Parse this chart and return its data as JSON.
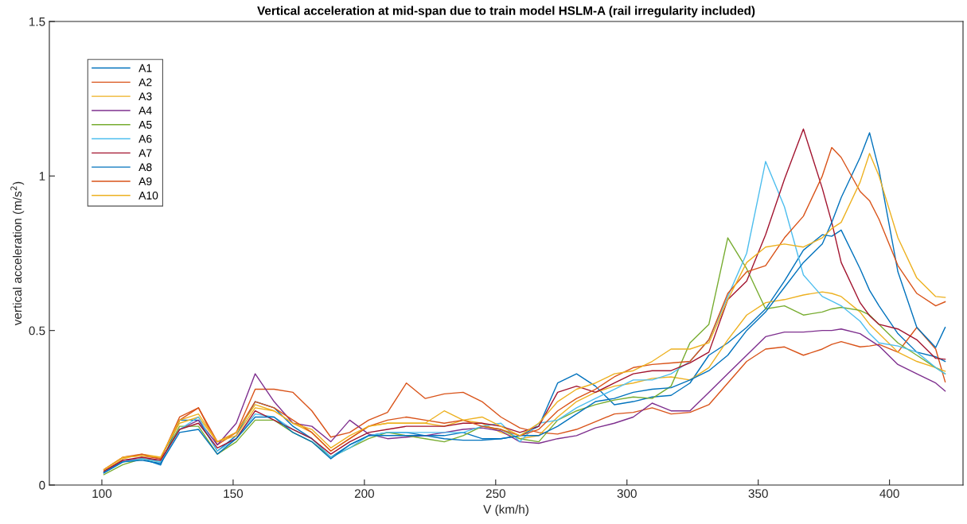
{
  "chart_data": {
    "type": "line",
    "title": "Vertical acceleration at mid-span due to train model HSLM-A (rail irregularity included)",
    "xlabel": "V (km/h)",
    "ylabel": "vertical acceleration (m/s$^{2}$)",
    "x": [
      100.8,
      108,
      115.2,
      122.4,
      129.6,
      136.8,
      144,
      151.2,
      158.4,
      165.6,
      172.8,
      180,
      187.2,
      194.4,
      201.6,
      208.8,
      216,
      223.2,
      230.4,
      237.6,
      244.8,
      252,
      259.2,
      266.4,
      273.6,
      280.8,
      288,
      295.2,
      302.4,
      309.6,
      316.8,
      324,
      331.2,
      338.4,
      345.6,
      352.8,
      360,
      367.2,
      374.4,
      378,
      381.6,
      388.8,
      392.4,
      396,
      403.2,
      410.4,
      417.6,
      421.2
    ],
    "xlim": [
      80,
      428
    ],
    "xticks": [
      100,
      150,
      200,
      250,
      300,
      350,
      400
    ],
    "ylim": [
      0,
      1.5
    ],
    "yticks": [
      0,
      0.5,
      1,
      1.5
    ],
    "legend": "top left",
    "grid": false,
    "line_style": "solid",
    "series": [
      {
        "name": "A1",
        "color": "#0072bd",
        "values": [
          0.04,
          0.075,
          0.085,
          0.065,
          0.21,
          0.21,
          0.11,
          0.16,
          0.27,
          0.25,
          0.19,
          0.15,
          0.09,
          0.13,
          0.16,
          0.17,
          0.17,
          0.16,
          0.16,
          0.17,
          0.15,
          0.15,
          0.16,
          0.19,
          0.33,
          0.36,
          0.32,
          0.26,
          0.27,
          0.285,
          0.29,
          0.33,
          0.42,
          0.46,
          0.51,
          0.57,
          0.66,
          0.76,
          0.81,
          0.805,
          0.825,
          0.7,
          0.63,
          0.58,
          0.49,
          0.43,
          0.415,
          0.4
        ]
      },
      {
        "name": "A2",
        "color": "#d95319",
        "values": [
          0.05,
          0.09,
          0.095,
          0.085,
          0.21,
          0.25,
          0.13,
          0.17,
          0.31,
          0.31,
          0.3,
          0.24,
          0.155,
          0.17,
          0.21,
          0.235,
          0.33,
          0.28,
          0.295,
          0.3,
          0.27,
          0.22,
          0.185,
          0.17,
          0.165,
          0.18,
          0.205,
          0.23,
          0.235,
          0.25,
          0.23,
          0.235,
          0.26,
          0.33,
          0.4,
          0.44,
          0.447,
          0.42,
          0.44,
          0.455,
          0.464,
          0.447,
          0.45,
          0.455,
          0.43,
          0.51,
          0.44,
          0.334
        ]
      },
      {
        "name": "A3",
        "color": "#edb120",
        "values": [
          0.045,
          0.085,
          0.1,
          0.09,
          0.2,
          0.22,
          0.14,
          0.16,
          0.25,
          0.24,
          0.2,
          0.17,
          0.11,
          0.15,
          0.19,
          0.2,
          0.2,
          0.2,
          0.19,
          0.21,
          0.2,
          0.17,
          0.15,
          0.16,
          0.22,
          0.27,
          0.3,
          0.32,
          0.33,
          0.345,
          0.35,
          0.34,
          0.38,
          0.47,
          0.55,
          0.59,
          0.6,
          0.615,
          0.625,
          0.62,
          0.61,
          0.56,
          0.52,
          0.49,
          0.43,
          0.4,
          0.38,
          0.368
        ]
      },
      {
        "name": "A4",
        "color": "#7e2f8e",
        "values": [
          0.04,
          0.08,
          0.085,
          0.08,
          0.18,
          0.21,
          0.13,
          0.2,
          0.36,
          0.27,
          0.2,
          0.19,
          0.14,
          0.21,
          0.165,
          0.15,
          0.155,
          0.16,
          0.17,
          0.18,
          0.185,
          0.175,
          0.14,
          0.135,
          0.15,
          0.16,
          0.185,
          0.2,
          0.22,
          0.265,
          0.24,
          0.24,
          0.3,
          0.36,
          0.42,
          0.48,
          0.495,
          0.495,
          0.5,
          0.5,
          0.505,
          0.49,
          0.47,
          0.45,
          0.39,
          0.36,
          0.33,
          0.304
        ]
      },
      {
        "name": "A5",
        "color": "#77ac30",
        "values": [
          0.034,
          0.066,
          0.085,
          0.075,
          0.19,
          0.19,
          0.1,
          0.14,
          0.21,
          0.21,
          0.17,
          0.14,
          0.09,
          0.12,
          0.15,
          0.17,
          0.16,
          0.15,
          0.14,
          0.16,
          0.19,
          0.18,
          0.15,
          0.14,
          0.21,
          0.24,
          0.26,
          0.275,
          0.285,
          0.28,
          0.32,
          0.46,
          0.52,
          0.8,
          0.7,
          0.57,
          0.58,
          0.55,
          0.56,
          0.57,
          0.575,
          0.565,
          0.55,
          0.52,
          0.46,
          0.42,
          0.38,
          0.36
        ]
      },
      {
        "name": "A6",
        "color": "#4dbeee",
        "values": [
          0.04,
          0.075,
          0.085,
          0.075,
          0.18,
          0.22,
          0.11,
          0.15,
          0.23,
          0.22,
          0.18,
          0.15,
          0.09,
          0.12,
          0.16,
          0.17,
          0.17,
          0.17,
          0.17,
          0.17,
          0.19,
          0.2,
          0.14,
          0.2,
          0.21,
          0.25,
          0.28,
          0.31,
          0.34,
          0.34,
          0.36,
          0.4,
          0.47,
          0.61,
          0.75,
          1.047,
          0.9,
          0.68,
          0.61,
          0.595,
          0.58,
          0.53,
          0.49,
          0.46,
          0.45,
          0.43,
          0.38,
          0.36
        ]
      },
      {
        "name": "A7",
        "color": "#a2142f",
        "values": [
          0.045,
          0.08,
          0.09,
          0.08,
          0.18,
          0.2,
          0.12,
          0.15,
          0.24,
          0.21,
          0.18,
          0.15,
          0.1,
          0.14,
          0.17,
          0.18,
          0.19,
          0.19,
          0.19,
          0.2,
          0.2,
          0.19,
          0.17,
          0.19,
          0.3,
          0.32,
          0.3,
          0.33,
          0.36,
          0.37,
          0.37,
          0.395,
          0.43,
          0.6,
          0.66,
          0.81,
          0.99,
          1.152,
          0.96,
          0.85,
          0.72,
          0.59,
          0.548,
          0.52,
          0.505,
          0.47,
          0.41,
          0.407
        ]
      },
      {
        "name": "A8",
        "color": "#0072bd",
        "values": [
          0.04,
          0.075,
          0.08,
          0.07,
          0.17,
          0.18,
          0.1,
          0.15,
          0.22,
          0.22,
          0.17,
          0.14,
          0.085,
          0.13,
          0.16,
          0.16,
          0.16,
          0.16,
          0.15,
          0.145,
          0.145,
          0.15,
          0.16,
          0.16,
          0.19,
          0.23,
          0.27,
          0.28,
          0.3,
          0.31,
          0.315,
          0.34,
          0.37,
          0.42,
          0.5,
          0.56,
          0.64,
          0.72,
          0.78,
          0.85,
          0.93,
          1.06,
          1.14,
          1.02,
          0.69,
          0.51,
          0.445,
          0.51
        ]
      },
      {
        "name": "A9",
        "color": "#d95319",
        "values": [
          0.05,
          0.09,
          0.1,
          0.085,
          0.22,
          0.25,
          0.14,
          0.17,
          0.27,
          0.25,
          0.21,
          0.17,
          0.11,
          0.15,
          0.19,
          0.21,
          0.22,
          0.21,
          0.2,
          0.21,
          0.19,
          0.18,
          0.16,
          0.18,
          0.24,
          0.28,
          0.31,
          0.35,
          0.38,
          0.39,
          0.395,
          0.4,
          0.47,
          0.62,
          0.69,
          0.71,
          0.8,
          0.87,
          1.0,
          1.092,
          1.06,
          0.95,
          0.92,
          0.86,
          0.71,
          0.62,
          0.58,
          0.593
        ]
      },
      {
        "name": "A10",
        "color": "#edb120",
        "values": [
          0.05,
          0.09,
          0.095,
          0.09,
          0.21,
          0.23,
          0.14,
          0.17,
          0.26,
          0.24,
          0.2,
          0.18,
          0.12,
          0.16,
          0.19,
          0.2,
          0.2,
          0.2,
          0.24,
          0.21,
          0.22,
          0.19,
          0.16,
          0.2,
          0.27,
          0.31,
          0.33,
          0.36,
          0.37,
          0.4,
          0.44,
          0.44,
          0.46,
          0.6,
          0.72,
          0.77,
          0.78,
          0.77,
          0.8,
          0.83,
          0.85,
          0.98,
          1.073,
          1.0,
          0.8,
          0.67,
          0.61,
          0.607
        ]
      }
    ]
  }
}
